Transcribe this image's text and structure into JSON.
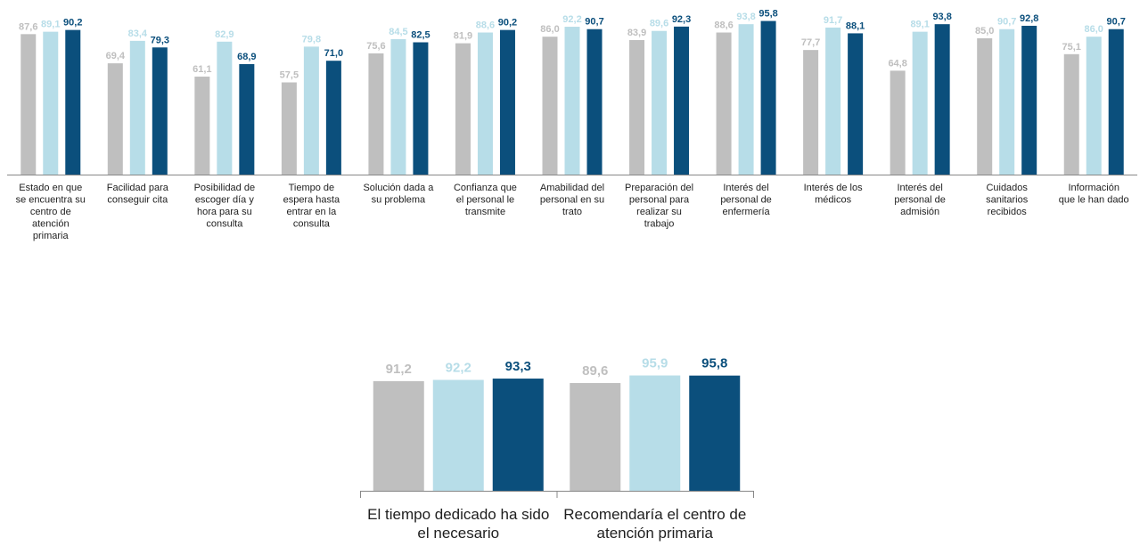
{
  "chart_data": [
    {
      "type": "bar",
      "title": "",
      "xlabel": "",
      "ylabel": "",
      "ylim": [
        0,
        100
      ],
      "grid": false,
      "legend": "none",
      "categories": [
        [
          "Estado en que",
          "se encuentra su",
          "centro de",
          "atención",
          "primaria"
        ],
        [
          "Facilidad para",
          "conseguir cita"
        ],
        [
          "Posibilidad de",
          "escoger día y",
          "hora para su",
          "consulta"
        ],
        [
          "Tiempo de",
          "espera hasta",
          "entrar en la",
          "consulta"
        ],
        [
          "Solución dada a",
          "su problema"
        ],
        [
          "Confianza que",
          "el personal le",
          "transmite"
        ],
        [
          "Amabilidad del",
          "personal en su",
          "trato"
        ],
        [
          "Preparación del",
          "personal para",
          "realizar su",
          "trabajo"
        ],
        [
          "Interés del",
          "personal de",
          "enfermería"
        ],
        [
          "Interés de los",
          "médicos"
        ],
        [
          "Interés del",
          "personal de",
          "admisión"
        ],
        [
          "Cuidados",
          "sanitarios",
          "recibidos"
        ],
        [
          "Información",
          "que le han dado"
        ]
      ],
      "series": [
        {
          "values": [
            87.6,
            69.4,
            61.1,
            57.5,
            75.6,
            81.9,
            86.0,
            83.9,
            88.6,
            77.7,
            64.8,
            85.0,
            75.1
          ]
        },
        {
          "values": [
            89.1,
            83.4,
            82.9,
            79.8,
            84.5,
            88.6,
            92.2,
            89.6,
            93.8,
            91.7,
            89.1,
            90.7,
            86.0
          ]
        },
        {
          "values": [
            90.2,
            79.3,
            68.9,
            71.0,
            82.5,
            90.2,
            90.7,
            92.3,
            95.8,
            88.1,
            93.8,
            92.8,
            90.7
          ]
        }
      ],
      "value_labels": [
        [
          "87,6",
          "69,4",
          "61,1",
          "57,5",
          "75,6",
          "81,9",
          "86,0",
          "83,9",
          "88,6",
          "77,7",
          "64,8",
          "85,0",
          "75,1"
        ],
        [
          "89,1",
          "83,4",
          "82,9",
          "79,8",
          "84,5",
          "88,6",
          "92,2",
          "89,6",
          "93,8",
          "91,7",
          "89,1",
          "90,7",
          "86,0"
        ],
        [
          "90,2",
          "79,3",
          "68,9",
          "71,0",
          "82,5",
          "90,2",
          "90,7",
          "92,3",
          "95,8",
          "88,1",
          "93,8",
          "92,8",
          "90,7"
        ]
      ]
    },
    {
      "type": "bar",
      "title": "",
      "xlabel": "",
      "ylabel": "",
      "ylim": [
        0,
        100
      ],
      "grid": false,
      "legend": "none",
      "categories": [
        [
          "El tiempo dedicado ha sido",
          "el necesario"
        ],
        [
          "Recomendaría el centro de",
          "atención primaria"
        ]
      ],
      "series": [
        {
          "values": [
            91.2,
            89.6
          ]
        },
        {
          "values": [
            92.2,
            95.9
          ]
        },
        {
          "values": [
            93.3,
            95.8
          ]
        }
      ],
      "value_labels": [
        [
          "91,2",
          "89,6"
        ],
        [
          "92,2",
          "95,9"
        ],
        [
          "93,3",
          "95,8"
        ]
      ]
    }
  ],
  "colors": {
    "series": [
      "#bfbfbf",
      "#b7dde8",
      "#0b4f7c"
    ],
    "value_labels": [
      "#bfbfbf",
      "#b7dde8",
      "#0b4f7c"
    ],
    "axis": "#888888"
  }
}
